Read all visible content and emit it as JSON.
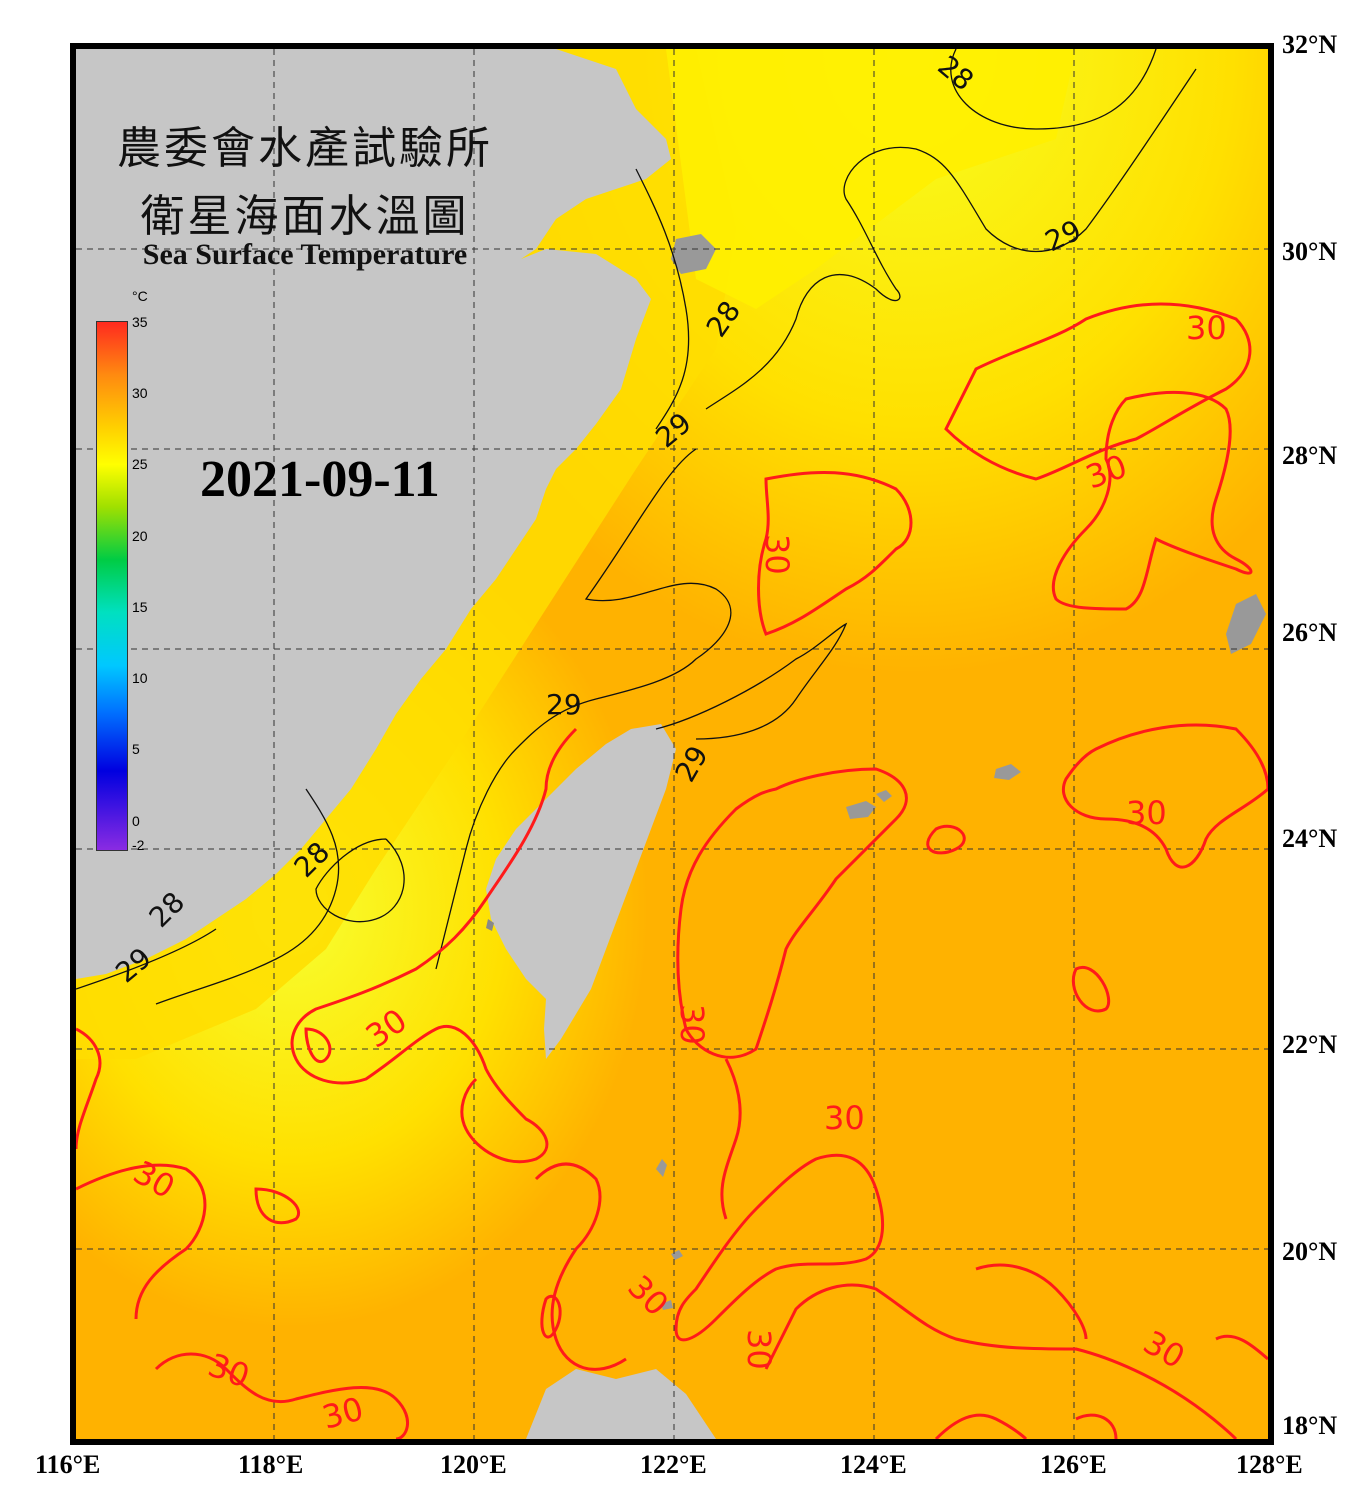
{
  "title": {
    "line1": "農委會水產試驗所",
    "line2": "衛星海面水溫圖",
    "line3": "Sea Surface Temperature"
  },
  "date": "2021-09-11",
  "colorbar": {
    "unit": "°C",
    "ticks": [
      "35",
      "30",
      "25",
      "20",
      "15",
      "10",
      "5",
      "0",
      "-2"
    ]
  },
  "axes": {
    "lat_labels": [
      "32°N",
      "30°N",
      "28°N",
      "26°N",
      "24°N",
      "22°N",
      "20°N",
      "18°N"
    ],
    "lon_labels": [
      "116°E",
      "118°E",
      "120°E",
      "122°E",
      "124°E",
      "126°E",
      "128°E"
    ]
  },
  "contour_labels": {
    "black": [
      "28",
      "29",
      "28",
      "29",
      "29",
      "29",
      "28",
      "28",
      "29"
    ],
    "red": [
      "30",
      "30",
      "30",
      "30",
      "30",
      "30",
      "30",
      "30",
      "30",
      "30",
      "30",
      "30",
      "30"
    ]
  },
  "colors": {
    "land": "#c6c6c6",
    "sea_warm": "#ffb000",
    "sea_cool": "#ffee00",
    "contour_30": "#ff2020",
    "contour_29": "#000000",
    "frame": "#000000"
  }
}
